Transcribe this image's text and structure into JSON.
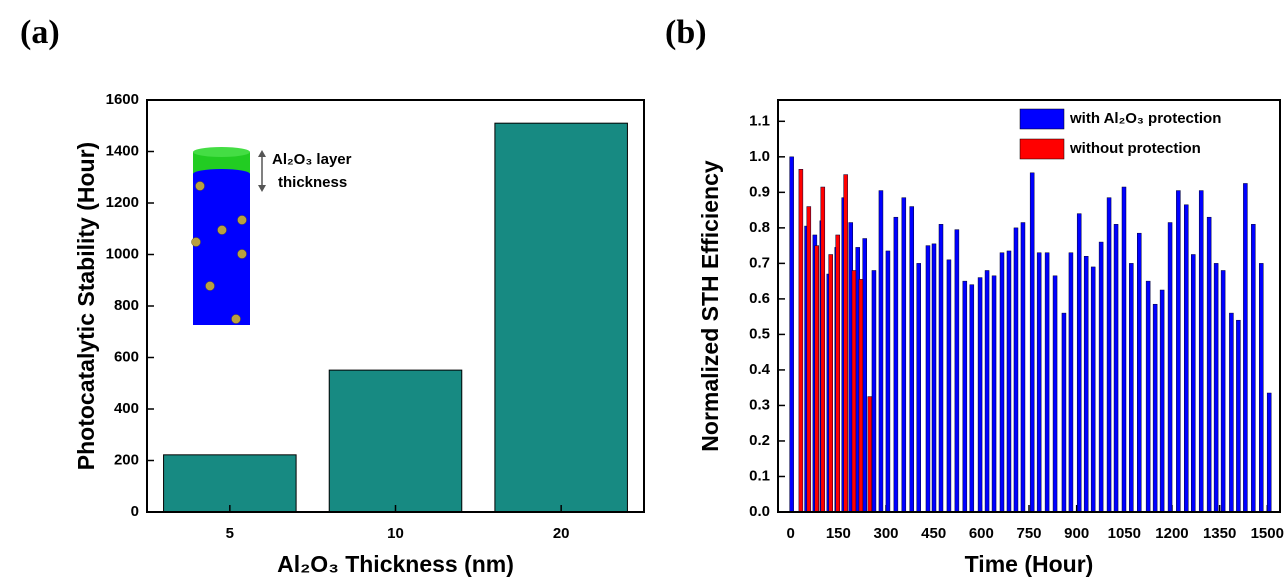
{
  "chart_data": [
    {
      "type": "bar",
      "panel_label": "(a)",
      "xlabel": "Al₂O₃ Thickness (nm)",
      "ylabel": "Photocatalytic Stability (Hour)",
      "inset_label": [
        "Al₂O₃ layer",
        "thickness"
      ],
      "categories": [
        "5",
        "10",
        "20"
      ],
      "values": [
        222,
        551,
        1510
      ],
      "color": "#178a82",
      "ylim": [
        0,
        1600
      ],
      "yticks": [
        0,
        200,
        400,
        600,
        800,
        1000,
        1200,
        1400,
        1600
      ]
    },
    {
      "type": "bar",
      "panel_label": "(b)",
      "xlabel": "Time (Hour)",
      "ylabel": "Normalized STH Efficiency",
      "legend": "upper right",
      "xlim": [
        -40,
        1540
      ],
      "xticks": [
        0,
        150,
        300,
        450,
        600,
        750,
        900,
        1050,
        1200,
        1350,
        1500
      ],
      "ylim": [
        0,
        1.16
      ],
      "yticks": [
        {
          "value": 0,
          "label": "0.0"
        },
        0.1,
        0.2,
        0.3,
        0.4,
        0.5,
        0.6,
        0.7,
        0.8,
        0.9,
        {
          "value": 1,
          "label": "1.0"
        },
        1.1
      ],
      "series": [
        {
          "name": "with Al₂O₃ protection",
          "color": "#0000ff",
          "x": [
            3,
            50,
            76,
            98,
            120,
            145,
            167,
            189,
            211,
            233,
            262,
            284,
            306,
            331,
            356,
            381,
            403,
            432,
            451,
            473,
            498,
            523,
            548,
            570,
            596,
            618,
            640,
            665,
            687,
            709,
            731,
            760,
            782,
            807,
            832,
            860,
            882,
            908,
            930,
            952,
            977,
            1002,
            1024,
            1049,
            1072,
            1097,
            1125,
            1147,
            1169,
            1194,
            1220,
            1245,
            1267,
            1292,
            1317,
            1339,
            1361,
            1387,
            1409,
            1431,
            1456,
            1481,
            1506
          ],
          "values": [
            1.0,
            0.805,
            0.78,
            0.82,
            0.67,
            0.745,
            0.885,
            0.815,
            0.745,
            0.77,
            0.68,
            0.905,
            0.735,
            0.83,
            0.885,
            0.86,
            0.7,
            0.75,
            0.755,
            0.81,
            0.71,
            0.795,
            0.65,
            0.64,
            0.66,
            0.68,
            0.665,
            0.73,
            0.735,
            0.8,
            0.815,
            0.955,
            0.73,
            0.73,
            0.665,
            0.56,
            0.73,
            0.84,
            0.72,
            0.69,
            0.76,
            0.885,
            0.81,
            0.915,
            0.7,
            0.785,
            0.65,
            0.585,
            0.625,
            0.815,
            0.905,
            0.865,
            0.725,
            0.905,
            0.83,
            0.7,
            0.68,
            0.56,
            0.54,
            0.925,
            0.81,
            0.7,
            0.335
          ]
        },
        {
          "name": "without protection",
          "color": "#ff0000",
          "x": [
            32,
            57,
            82,
            101,
            126,
            148,
            173,
            199,
            221,
            249
          ],
          "values": [
            0.965,
            0.86,
            0.75,
            0.915,
            0.725,
            0.78,
            0.95,
            0.68,
            0.655,
            0.325
          ]
        }
      ]
    }
  ]
}
